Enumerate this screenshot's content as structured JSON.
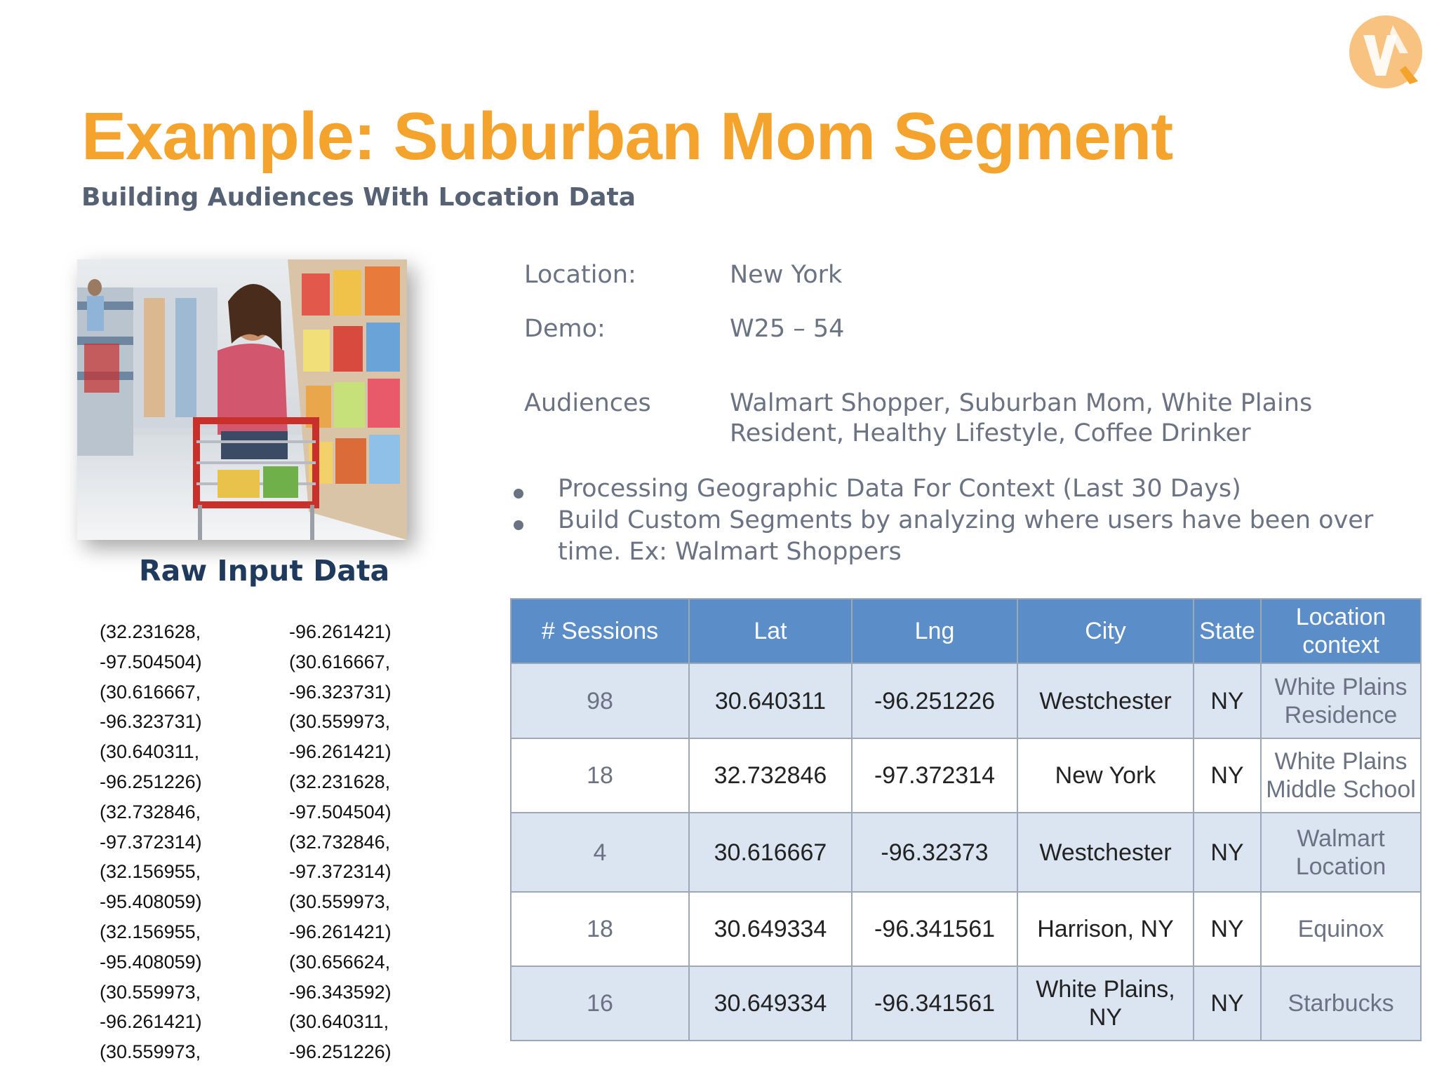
{
  "header": {
    "title": "Example: Suburban Mom Segment",
    "subtitle": "Building Audiences With Location Data"
  },
  "colors": {
    "title": "#f4a32c",
    "subtitle": "#566274",
    "table_header": "#5b8ec9",
    "table_row_alt": "#dbe5f1"
  },
  "logo": {
    "icon": "brand-logo-icon"
  },
  "photo": {
    "icon": "shopper-photo-icon"
  },
  "raw_input": {
    "title": "Raw Input Data",
    "rows": [
      [
        "(32.231628,",
        "-96.261421)"
      ],
      [
        "-97.504504)",
        "(30.616667,"
      ],
      [
        "(30.616667,",
        "-96.323731)"
      ],
      [
        "-96.323731)",
        "(30.559973,"
      ],
      [
        "(30.640311,",
        "-96.261421)"
      ],
      [
        "-96.251226)",
        "(32.231628,"
      ],
      [
        "(32.732846,",
        "-97.504504)"
      ],
      [
        "-97.372314)",
        "(32.732846,"
      ],
      [
        "(32.156955,",
        "-97.372314)"
      ],
      [
        "-95.408059)",
        "(30.559973,"
      ],
      [
        "(32.156955,",
        "-96.261421)"
      ],
      [
        "-95.408059)",
        "(30.656624,"
      ],
      [
        "(30.559973,",
        "-96.343592)"
      ],
      [
        "-96.261421)",
        "(30.640311,"
      ],
      [
        "(30.559973,",
        "-96.251226)"
      ]
    ]
  },
  "info": {
    "location_label": "Location:",
    "location_value": "New York",
    "demo_label": "Demo:",
    "demo_value": "W25 – 54",
    "audiences_label": "Audiences",
    "audiences_line1": "Walmart Shopper, Suburban Mom, White Plains",
    "audiences_line2": "Resident, Healthy Lifestyle, Coffee Drinker"
  },
  "bullets": [
    "Processing Geographic Data For Context (Last 30 Days)",
    "Build Custom Segments by analyzing where users have been over time.  Ex: Walmart Shoppers"
  ],
  "table": {
    "headers": [
      "# Sessions",
      "Lat",
      "Lng",
      "City",
      "State",
      "Location context"
    ],
    "rows": [
      {
        "sessions": "98",
        "lat": "30.640311",
        "lng": "-96.251226",
        "city": "Westchester",
        "state": "NY",
        "context": "White Plains Residence"
      },
      {
        "sessions": "18",
        "lat": "32.732846",
        "lng": "-97.372314",
        "city": "New York",
        "state": "NY",
        "context": "White Plains Middle School"
      },
      {
        "sessions": "4",
        "lat": "30.616667",
        "lng": "-96.32373",
        "city": "Westchester",
        "state": "NY",
        "context": "Walmart Location"
      },
      {
        "sessions": "18",
        "lat": "30.649334",
        "lng": "-96.341561",
        "city": "Harrison, NY",
        "state": "NY",
        "context": "Equinox"
      },
      {
        "sessions": "16",
        "lat": "30.649334",
        "lng": "-96.341561",
        "city": "White Plains, NY",
        "state": "NY",
        "context": "Starbucks"
      }
    ]
  }
}
